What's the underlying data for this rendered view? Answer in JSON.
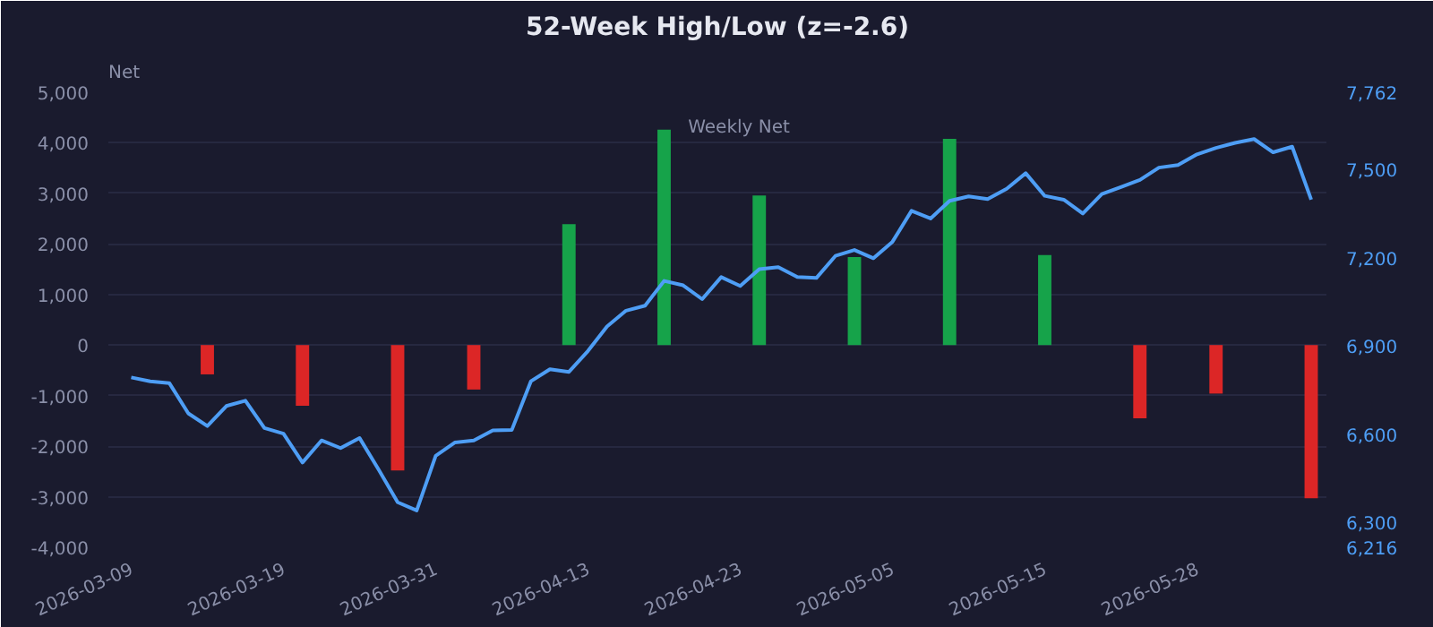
{
  "chart_data": {
    "type": "bar",
    "title": "52-Week High/Low (z=-2.6)",
    "ylabel": "Net",
    "categories": [
      "2026-03-09",
      null,
      null,
      null,
      null,
      null,
      null,
      null,
      "2026-03-19",
      null,
      null,
      null,
      null,
      null,
      null,
      null,
      "2026-03-31",
      null,
      null,
      null,
      null,
      null,
      null,
      null,
      "2026-04-13",
      null,
      null,
      null,
      null,
      null,
      null,
      null,
      "2026-04-23",
      null,
      null,
      null,
      null,
      null,
      null,
      null,
      "2026-05-05",
      null,
      null,
      null,
      null,
      null,
      null,
      null,
      "2026-05-15",
      null,
      null,
      null,
      null,
      null,
      null,
      null,
      "2026-05-28",
      null,
      null,
      null,
      null,
      null,
      null
    ],
    "series": [
      {
        "name": "Weekly Net",
        "color": "#5470c6",
        "colors": [
          null,
          null,
          null,
          null,
          "#dc2626",
          null,
          null,
          null,
          null,
          "#dc2626",
          null,
          null,
          null,
          null,
          "#dc2626",
          null,
          null,
          null,
          "#dc2626",
          null,
          null,
          null,
          null,
          "#16a34a",
          null,
          null,
          null,
          null,
          "#16a34a",
          null,
          null,
          null,
          null,
          "#16a34a",
          null,
          null,
          null,
          null,
          "#16a34a",
          null,
          null,
          null,
          null,
          "#16a34a",
          null,
          null,
          null,
          null,
          "#16a34a",
          null,
          null,
          null,
          null,
          "#dc2626",
          null,
          null,
          null,
          "#dc2626",
          null,
          null,
          null,
          null,
          "#dc2626"
        ],
        "values": [
          null,
          null,
          null,
          null,
          -580,
          null,
          null,
          null,
          null,
          -1200,
          null,
          null,
          null,
          null,
          -2480,
          null,
          null,
          null,
          -880,
          null,
          null,
          null,
          null,
          2390,
          null,
          null,
          null,
          null,
          4260,
          null,
          null,
          null,
          null,
          2960,
          null,
          null,
          null,
          null,
          1740,
          null,
          null,
          null,
          null,
          4080,
          null,
          null,
          null,
          null,
          1780,
          null,
          null,
          null,
          null,
          -1450,
          null,
          null,
          null,
          -960,
          null,
          null,
          null,
          null,
          -3030
        ]
      },
      {
        "type": "line",
        "axis": "y2",
        "color": "#4e9ef5",
        "values": [
          6793,
          6780,
          6774,
          6671,
          6628,
          6696,
          6714,
          6621,
          6602,
          6504,
          6579,
          6553,
          6587,
          6480,
          6369,
          6341,
          6527,
          6572,
          6579,
          6613,
          6615,
          6780,
          6821,
          6812,
          6883,
          6966,
          7020,
          7037,
          7121,
          7106,
          7059,
          7134,
          7104,
          7161,
          7168,
          7134,
          7131,
          7206,
          7226,
          7198,
          7254,
          7359,
          7333,
          7393,
          7408,
          7399,
          7434,
          7487,
          7410,
          7397,
          7350,
          7416,
          7440,
          7464,
          7506,
          7515,
          7551,
          7573,
          7590,
          7603,
          7558,
          7577,
          7397
        ]
      }
    ],
    "ylim": [
      -4000,
      5000
    ],
    "yticks": [
      {
        "value": -4000,
        "label": "-4,000"
      },
      {
        "value": -3000,
        "label": "-3,000"
      },
      {
        "value": -2000,
        "label": "-2,000"
      },
      {
        "value": -1000,
        "label": "-1,000"
      },
      0,
      {
        "value": 1000,
        "label": "1,000"
      },
      {
        "value": 2000,
        "label": "2,000"
      },
      {
        "value": 3000,
        "label": "3,000"
      },
      {
        "value": 4000,
        "label": "4,000"
      },
      {
        "value": 5000,
        "label": "5,000"
      }
    ],
    "y2lim": [
      6216,
      7762
    ],
    "y2ticks": [
      {
        "value": 6216,
        "label": "6,216"
      },
      {
        "value": 6300,
        "label": "6,300"
      },
      {
        "value": 6600,
        "label": "6,600"
      },
      {
        "value": 6900,
        "label": "6,900"
      },
      {
        "value": 7200,
        "label": "7,200"
      },
      {
        "value": 7500,
        "label": "7,500"
      },
      {
        "value": 7762,
        "label": "7,762"
      }
    ],
    "grid": "y",
    "legend": "top"
  }
}
